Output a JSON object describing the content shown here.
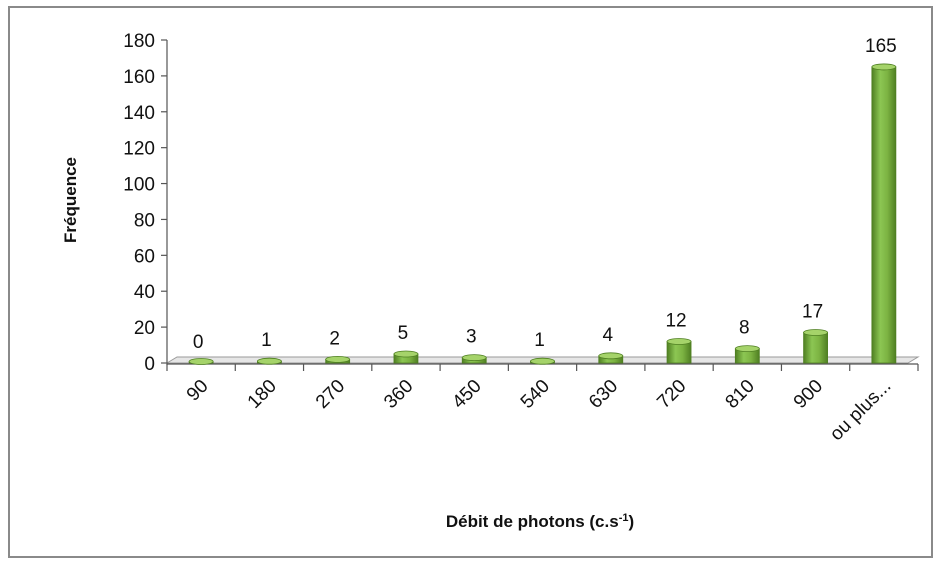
{
  "chart_data": {
    "type": "bar",
    "categories": [
      "90",
      "180",
      "270",
      "360",
      "450",
      "540",
      "630",
      "720",
      "810",
      "900",
      "ou plus..."
    ],
    "values": [
      0,
      1,
      2,
      5,
      3,
      1,
      4,
      12,
      8,
      17,
      165
    ],
    "data_labels": [
      "0",
      "1",
      "2",
      "5",
      "3",
      "1",
      "4",
      "12",
      "8",
      "17",
      "165"
    ],
    "y_ticks": [
      "0",
      "20",
      "40",
      "60",
      "80",
      "100",
      "120",
      "140",
      "160",
      "180"
    ],
    "ylabel": "Fréquence",
    "xlabel_main": "Débit de photons (c.s",
    "xlabel_sup": "-1",
    "xlabel_close": ")",
    "ylim": [
      0,
      180
    ],
    "colors": {
      "bar": "#7cb342",
      "bar_dark": "#4f7f22",
      "bar_light": "#a5d36a",
      "floor": "#d8d8d8"
    },
    "grid": false,
    "legend": "none"
  }
}
